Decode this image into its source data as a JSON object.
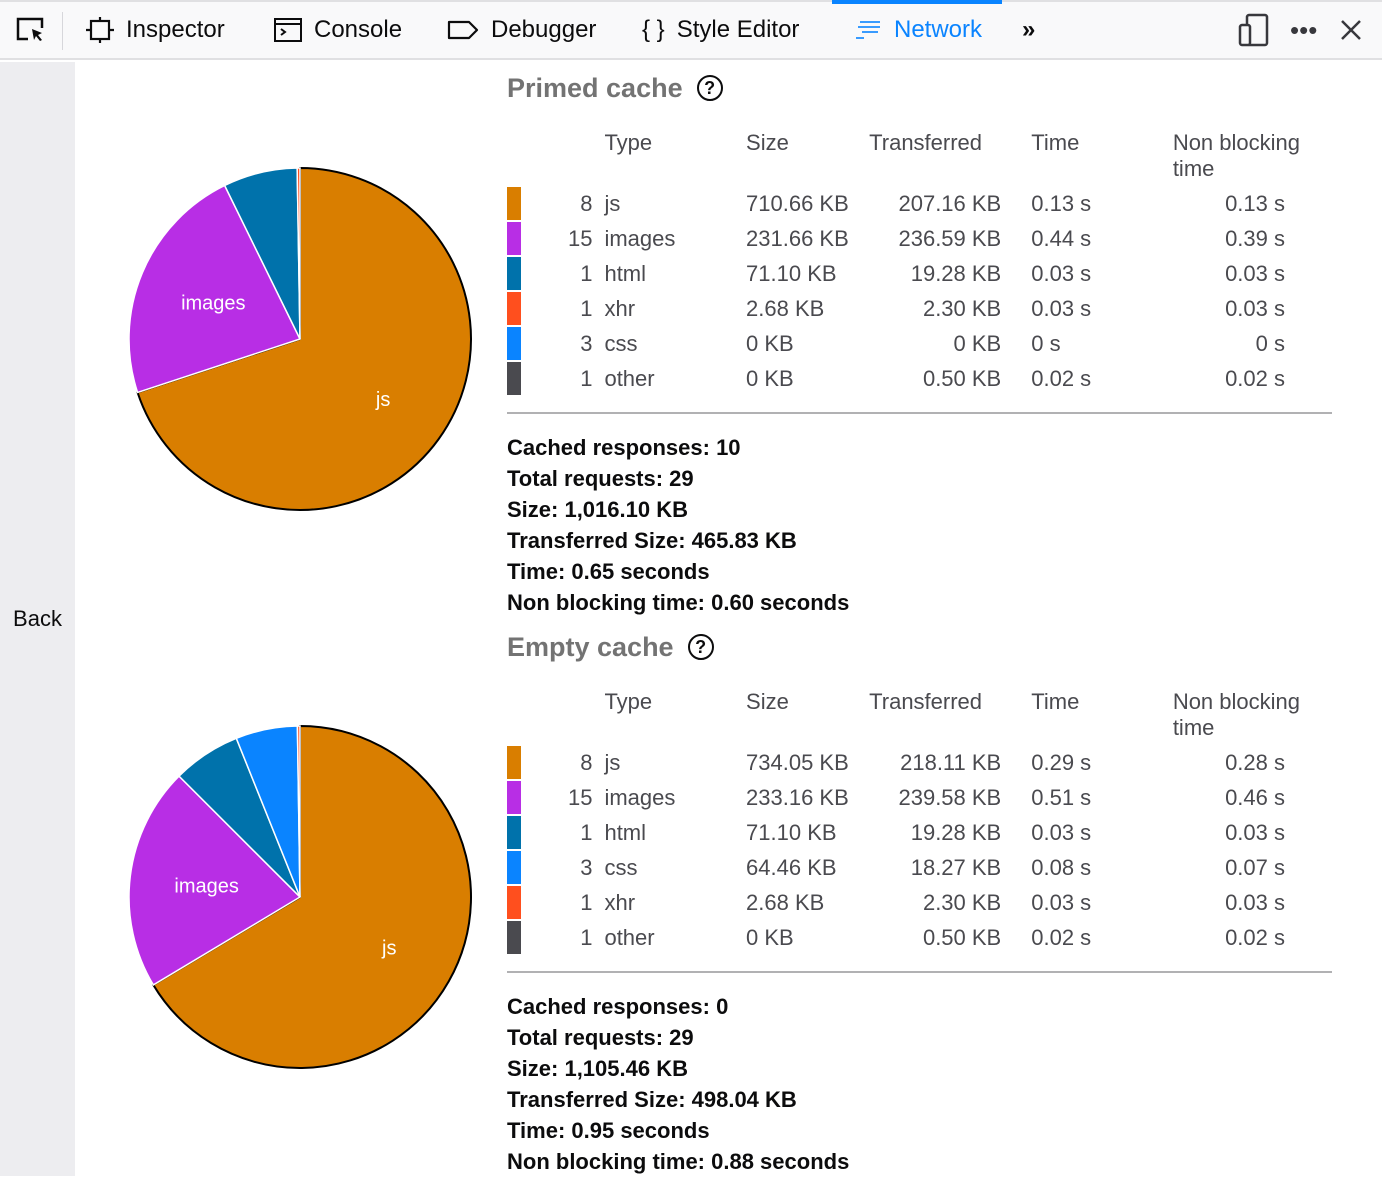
{
  "toolbar": {
    "tabs": [
      {
        "label": "Inspector",
        "icon": "inspector-icon"
      },
      {
        "label": "Console",
        "icon": "console-icon"
      },
      {
        "label": "Debugger",
        "icon": "debugger-icon"
      },
      {
        "label": "Style Editor",
        "icon": "braces-icon"
      },
      {
        "label": "Network",
        "icon": "network-icon",
        "selected": true
      }
    ],
    "accent": "#0a84ff"
  },
  "sidebar": {
    "back_label": "Back"
  },
  "columns": {
    "type": "Type",
    "size": "Size",
    "transferred": "Transferred",
    "time": "Time",
    "non_blocking": "Non blocking time"
  },
  "colors": {
    "js": "#d97e00",
    "images": "#b82ee5",
    "html": "#0072ab",
    "xhr": "#ff4f1e",
    "css": "#0a84ff",
    "other": "#4a4a4f"
  },
  "primed": {
    "title": "Primed cache",
    "rows": [
      {
        "count": "8",
        "type": "js",
        "size": "710.66 KB",
        "transferred": "207.16 KB",
        "time": "0.13 s",
        "non_blocking": "0.13 s"
      },
      {
        "count": "15",
        "type": "images",
        "size": "231.66 KB",
        "transferred": "236.59 KB",
        "time": "0.44 s",
        "non_blocking": "0.39 s"
      },
      {
        "count": "1",
        "type": "html",
        "size": "71.10 KB",
        "transferred": "19.28 KB",
        "time": "0.03 s",
        "non_blocking": "0.03 s"
      },
      {
        "count": "1",
        "type": "xhr",
        "size": "2.68 KB",
        "transferred": "2.30 KB",
        "time": "0.03 s",
        "non_blocking": "0.03 s"
      },
      {
        "count": "3",
        "type": "css",
        "size": "0 KB",
        "transferred": "0 KB",
        "time": "0 s",
        "non_blocking": "0 s"
      },
      {
        "count": "1",
        "type": "other",
        "size": "0 KB",
        "transferred": "0.50 KB",
        "time": "0.02 s",
        "non_blocking": "0.02 s"
      }
    ],
    "summary": [
      "Cached responses: 10",
      "Total requests: 29",
      "Size: 1,016.10 KB",
      "Transferred Size: 465.83 KB",
      "Time: 0.65 seconds",
      "Non blocking time: 0.60 seconds"
    ]
  },
  "empty": {
    "title": "Empty cache",
    "rows": [
      {
        "count": "8",
        "type": "js",
        "size": "734.05 KB",
        "transferred": "218.11 KB",
        "time": "0.29 s",
        "non_blocking": "0.28 s"
      },
      {
        "count": "15",
        "type": "images",
        "size": "233.16 KB",
        "transferred": "239.58 KB",
        "time": "0.51 s",
        "non_blocking": "0.46 s"
      },
      {
        "count": "1",
        "type": "html",
        "size": "71.10 KB",
        "transferred": "19.28 KB",
        "time": "0.03 s",
        "non_blocking": "0.03 s"
      },
      {
        "count": "3",
        "type": "css",
        "size": "64.46 KB",
        "transferred": "18.27 KB",
        "time": "0.08 s",
        "non_blocking": "0.07 s"
      },
      {
        "count": "1",
        "type": "xhr",
        "size": "2.68 KB",
        "transferred": "2.30 KB",
        "time": "0.03 s",
        "non_blocking": "0.03 s"
      },
      {
        "count": "1",
        "type": "other",
        "size": "0 KB",
        "transferred": "0.50 KB",
        "time": "0.02 s",
        "non_blocking": "0.02 s"
      }
    ],
    "summary": [
      "Cached responses: 0",
      "Total requests: 29",
      "Size: 1,105.46 KB",
      "Transferred Size: 498.04 KB",
      "Time: 0.95 seconds",
      "Non blocking time: 0.88 seconds"
    ]
  },
  "chart_data": [
    {
      "type": "pie",
      "categories": [
        "js",
        "images",
        "html",
        "xhr"
      ],
      "values": [
        710.66,
        231.66,
        71.1,
        2.68
      ],
      "labels_shown": [
        "js",
        "images"
      ]
    },
    {
      "type": "pie",
      "categories": [
        "js",
        "images",
        "html",
        "css",
        "xhr"
      ],
      "values": [
        734.05,
        233.16,
        71.1,
        64.46,
        2.68
      ],
      "labels_shown": [
        "js",
        "images"
      ]
    }
  ]
}
